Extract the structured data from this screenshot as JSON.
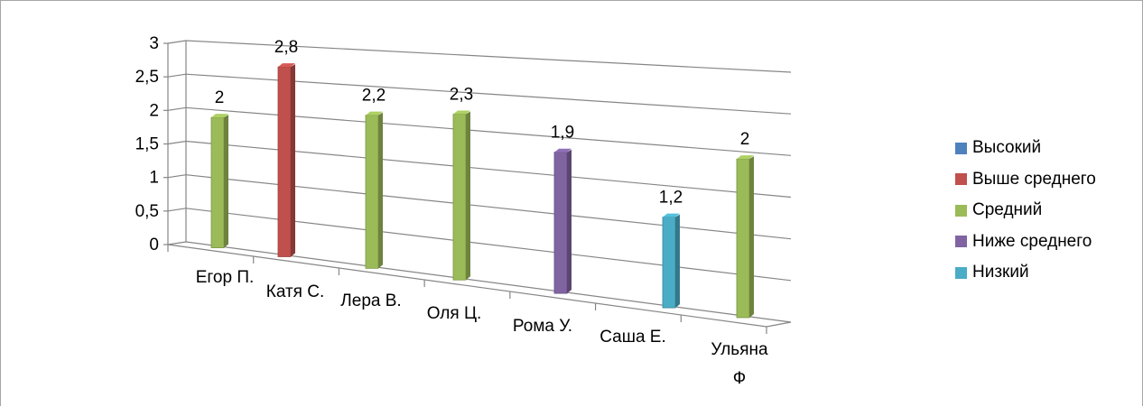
{
  "chart_data": {
    "type": "bar",
    "categories": [
      "Егор П.",
      "Катя С.",
      "Лера В.",
      "Оля Ц.",
      "Рома У.",
      "Саша Е.",
      "Ульяна Ф"
    ],
    "values": [
      2,
      2.8,
      2.2,
      2.3,
      1.9,
      1.2,
      2
    ],
    "value_labels": [
      "2",
      "2,8",
      "2,2",
      "2,3",
      "1,9",
      "1,2",
      "2"
    ],
    "bar_series": [
      "Средний",
      "Выше среднего",
      "Средний",
      "Средний",
      "Ниже среднего",
      "Низкий",
      "Средний"
    ],
    "series": [
      {
        "name": "Высокий",
        "color": "#4f81bd"
      },
      {
        "name": "Выше среднего",
        "color": "#c0504d"
      },
      {
        "name": "Средний",
        "color": "#9bbb59"
      },
      {
        "name": "Ниже среднего",
        "color": "#8064a2"
      },
      {
        "name": "Низкий",
        "color": "#4bacc6"
      }
    ],
    "y_ticks": [
      "0",
      "0,5",
      "1",
      "1,5",
      "2",
      "2,5",
      "3"
    ],
    "ylim": [
      0,
      3
    ],
    "grid": true,
    "legend_position": "right"
  }
}
